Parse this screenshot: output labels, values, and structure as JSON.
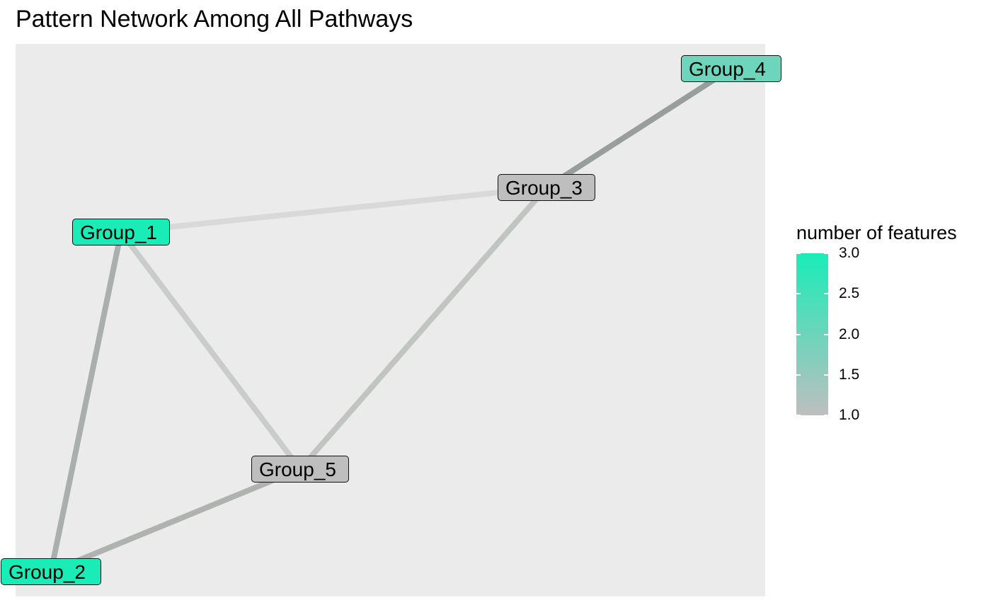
{
  "title": "Pattern Network Among All Pathways",
  "chart_data": {
    "type": "network",
    "nodes": [
      {
        "id": "Group_1",
        "label": "Group_1",
        "features": 3.0
      },
      {
        "id": "Group_2",
        "label": "Group_2",
        "features": 3.0
      },
      {
        "id": "Group_3",
        "label": "Group_3",
        "features": 1.0
      },
      {
        "id": "Group_4",
        "label": "Group_4",
        "features": 2.0
      },
      {
        "id": "Group_5",
        "label": "Group_5",
        "features": 1.0
      }
    ],
    "edges": [
      {
        "from": "Group_1",
        "to": "Group_3"
      },
      {
        "from": "Group_1",
        "to": "Group_5"
      },
      {
        "from": "Group_1",
        "to": "Group_2"
      },
      {
        "from": "Group_2",
        "to": "Group_5"
      },
      {
        "from": "Group_3",
        "to": "Group_5"
      },
      {
        "from": "Group_3",
        "to": "Group_4"
      }
    ],
    "legend": {
      "title": "number of features",
      "ticks": [
        "3.0",
        "2.5",
        "2.0",
        "1.5",
        "1.0"
      ],
      "min": 1.0,
      "max": 3.0,
      "low_color": "#bebebe",
      "high_color": "#1aecb8"
    }
  }
}
